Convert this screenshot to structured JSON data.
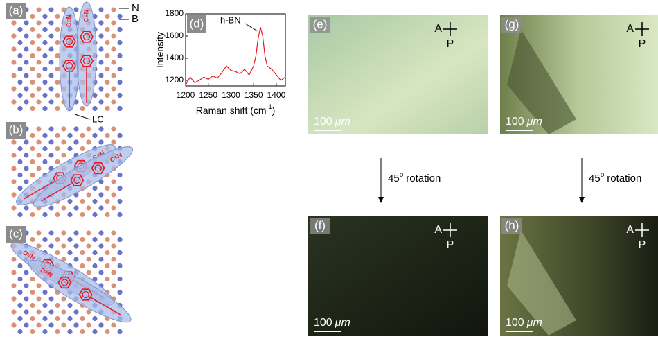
{
  "panels": [
    {
      "label": "(a)",
      "nitriles": [
        "C≡N",
        "C≡N"
      ],
      "annotations": [
        "N",
        "B",
        "LC"
      ]
    },
    {
      "label": "(b)",
      "nitriles": [
        "C≡N",
        "C≡N"
      ]
    },
    {
      "label": "(c)",
      "nitriles": [
        "N≡C",
        "N≡C"
      ]
    }
  ],
  "chart_data": {
    "type": "line",
    "label": "(d)",
    "annotation": "h-BN",
    "x_label": "Raman shift (cm",
    "x_label_sup": "-1",
    "x_label_end": ")",
    "y_label": "Intensity",
    "x": [
      1200,
      1210,
      1220,
      1230,
      1240,
      1250,
      1260,
      1270,
      1280,
      1290,
      1300,
      1310,
      1320,
      1330,
      1340,
      1350,
      1355,
      1360,
      1365,
      1370,
      1375,
      1380,
      1390,
      1400,
      1410,
      1420
    ],
    "series": [
      {
        "color": "#e8161b",
        "values": [
          1160,
          1230,
          1180,
          1200,
          1230,
          1210,
          1240,
          1220,
          1270,
          1330,
          1290,
          1280,
          1260,
          1300,
          1250,
          1330,
          1420,
          1580,
          1680,
          1600,
          1420,
          1330,
          1300,
          1250,
          1200,
          1230
        ]
      }
    ],
    "xlim": [
      1200,
      1420
    ],
    "ylim": [
      1150,
      1800
    ],
    "xticks": [
      1200,
      1250,
      1300,
      1350,
      1400
    ],
    "yticks": [
      1200,
      1400,
      1600,
      1800
    ]
  },
  "micrographs": [
    {
      "label": "(e)",
      "a": "A",
      "p": "P",
      "scale_value": "100",
      "scale_unit": "μm"
    },
    {
      "label": "(f)",
      "a": "A",
      "p": "P",
      "scale_value": "100",
      "scale_unit": "μm"
    },
    {
      "label": "(g)",
      "a": "A",
      "p": "P",
      "scale_value": "100",
      "scale_unit": "μm"
    },
    {
      "label": "(h)",
      "a": "A",
      "p": "P",
      "scale_value": "100",
      "scale_unit": "μm"
    }
  ],
  "rotations": [
    {
      "angle": "45",
      "degree": "o",
      "text": "rotation"
    },
    {
      "angle": "45",
      "degree": "o",
      "text": "rotation"
    }
  ]
}
